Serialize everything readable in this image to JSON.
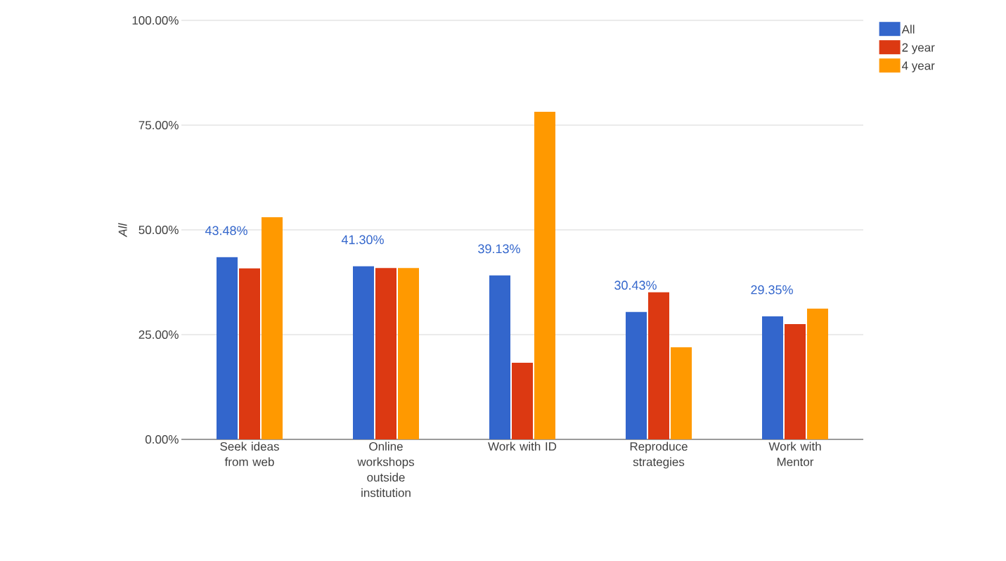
{
  "chart_data": {
    "type": "bar",
    "ylabel": "*All*",
    "categories": [
      "Seek ideas from web",
      "Online workshops outside institution",
      "Work with ID",
      "Reproduce strategies",
      "Work with Mentor"
    ],
    "series": [
      {
        "name": "All",
        "color": "#3366cc",
        "values": [
          43.48,
          41.3,
          39.13,
          30.43,
          29.35
        ],
        "value_labels": [
          "43.48%",
          "41.30%",
          "39.13%",
          "30.43%",
          "29.35%"
        ]
      },
      {
        "name": "2 year",
        "color": "#dc3912",
        "values": [
          40.8,
          40.9,
          18.3,
          35.1,
          27.5
        ]
      },
      {
        "name": "4 year",
        "color": "#ff9900",
        "values": [
          53.0,
          40.9,
          78.2,
          22.0,
          31.2
        ]
      }
    ],
    "ylim": [
      0,
      100
    ],
    "yticks": [
      {
        "value": 0,
        "label": "0.00%"
      },
      {
        "value": 25,
        "label": "25.00%"
      },
      {
        "value": 50,
        "label": "50.00%"
      },
      {
        "value": 75,
        "label": "75.00%"
      },
      {
        "value": 100,
        "label": "100.00%"
      }
    ],
    "grid": "y",
    "legend": "top right"
  }
}
